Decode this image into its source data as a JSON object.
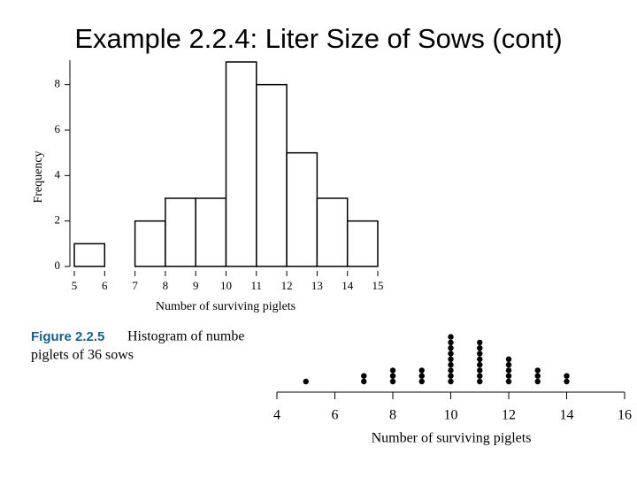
{
  "title": "Example 2.2.4: Liter Size of Sows (cont)",
  "caption": {
    "label": "Figure 2.2.5",
    "line1": "Histogram of numbe",
    "line2": "piglets of 36 sows"
  },
  "chart_data": [
    {
      "type": "histogram",
      "bins": [
        5,
        6,
        7,
        8,
        9,
        10,
        11,
        12,
        13,
        14,
        15
      ],
      "counts": [
        1,
        0,
        2,
        3,
        3,
        9,
        8,
        5,
        3,
        2
      ],
      "xlim": [
        5,
        15
      ],
      "xticks": [
        5,
        6,
        7,
        8,
        9,
        10,
        11,
        12,
        13,
        14,
        15
      ],
      "ylim": [
        0,
        9
      ],
      "yticks": [
        0,
        2,
        4,
        6,
        8
      ],
      "x_label": "Number of surviving piglets",
      "y_label": "Frequency",
      "color": "#ffffff"
    },
    {
      "type": "dot",
      "x": [
        5,
        7,
        8,
        9,
        10,
        11,
        12,
        13,
        14
      ],
      "counts": [
        1,
        2,
        3,
        3,
        9,
        8,
        5,
        3,
        2
      ],
      "xlim": [
        4,
        16
      ],
      "xticks": [
        4,
        6,
        8,
        10,
        12,
        14,
        16
      ],
      "x_label": "Number of surviving piglets",
      "color": "#000000"
    }
  ]
}
